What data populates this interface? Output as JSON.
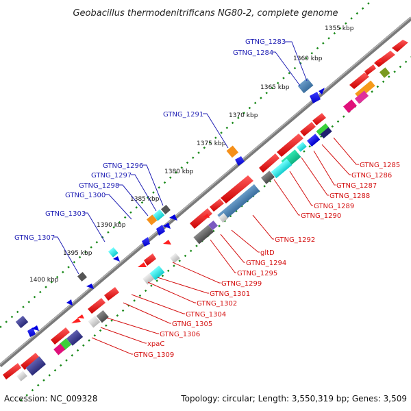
{
  "title": "Geobacillus thermodenitrificans NG80-2, complete genome",
  "footer": {
    "accession": "Accession: NC_009328",
    "summary": "Topology: circular; Length: 3,550,319 bp; Genes: 3,509"
  },
  "kbp_ticks": [
    "1355 kbp",
    "1360 kbp",
    "1365 kbp",
    "1370 kbp",
    "1375 kbp",
    "1380 kbp",
    "1385 kbp",
    "1390 kbp",
    "1395 kbp",
    "1400 kbp"
  ],
  "gene_labels_upper": [
    "GTNG_1283",
    "GTNG_1284",
    "GTNG_1291",
    "GTNG_1296",
    "GTNG_1297",
    "GTNG_1298",
    "GTNG_1300",
    "GTNG_1303",
    "GTNG_1307"
  ],
  "gene_labels_lower": [
    "GTNG_1285",
    "GTNG_1286",
    "GTNG_1287",
    "GTNG_1288",
    "GTNG_1289",
    "GTNG_1290",
    "GTNG_1292",
    "gltD",
    "GTNG_1294",
    "GTNG_1295",
    "GTNG_1299",
    "GTNG_1301",
    "GTNG_1302",
    "GTNG_1304",
    "GTNG_1305",
    "GTNG_1306",
    "xpaC",
    "GTNG_1309"
  ],
  "colors": {
    "upper_label": "#1f1fb4",
    "lower_label": "#d41010",
    "backbone": "#808080",
    "tick_dots": "#1a8a1a",
    "forward_gene": "#ff0000",
    "reverse_gene": "#0000ff"
  }
}
